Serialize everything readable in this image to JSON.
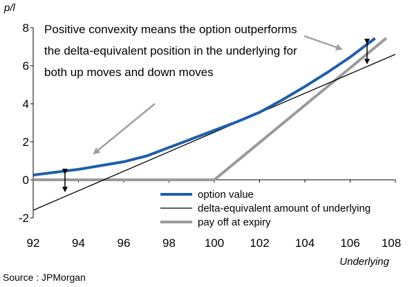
{
  "chart_data": {
    "type": "line",
    "ylabel": "p/l",
    "xlabel": "Underlying",
    "xlim": [
      92,
      108
    ],
    "ylim": [
      -2,
      8
    ],
    "x_ticks": [
      "92",
      "94",
      "96",
      "98",
      "100",
      "102",
      "104",
      "106",
      "108"
    ],
    "y_ticks": [
      "8",
      "6",
      "4",
      "2",
      "0",
      "-2"
    ],
    "grid": false,
    "legend_position": "bottom-right",
    "annotation": [
      "Positive convexity means the option outperforms",
      "the delta-equivalent position in the underlying for",
      "both up moves and down moves"
    ],
    "series": [
      {
        "name": "option value",
        "color": "#1f5fa8",
        "x": [
          92,
          93,
          94,
          95,
          96,
          97,
          98,
          99,
          100,
          101,
          102,
          103,
          104,
          105,
          106,
          107,
          107.1
        ],
        "y": [
          0.25,
          0.4,
          0.55,
          0.75,
          0.95,
          1.25,
          1.7,
          2.15,
          2.6,
          3.05,
          3.55,
          4.2,
          4.9,
          5.65,
          6.45,
          7.35,
          7.45
        ]
      },
      {
        "name": "delta-equivalent amount of underlying",
        "color": "#000000",
        "x": [
          92,
          108
        ],
        "y": [
          -1.6,
          6.6
        ]
      },
      {
        "name": "pay off at expiry",
        "color": "#9a9a9a",
        "x": [
          92,
          100,
          107.6
        ],
        "y": [
          0,
          0,
          7.45
        ]
      }
    ]
  },
  "source": "Source : JPMorgan"
}
